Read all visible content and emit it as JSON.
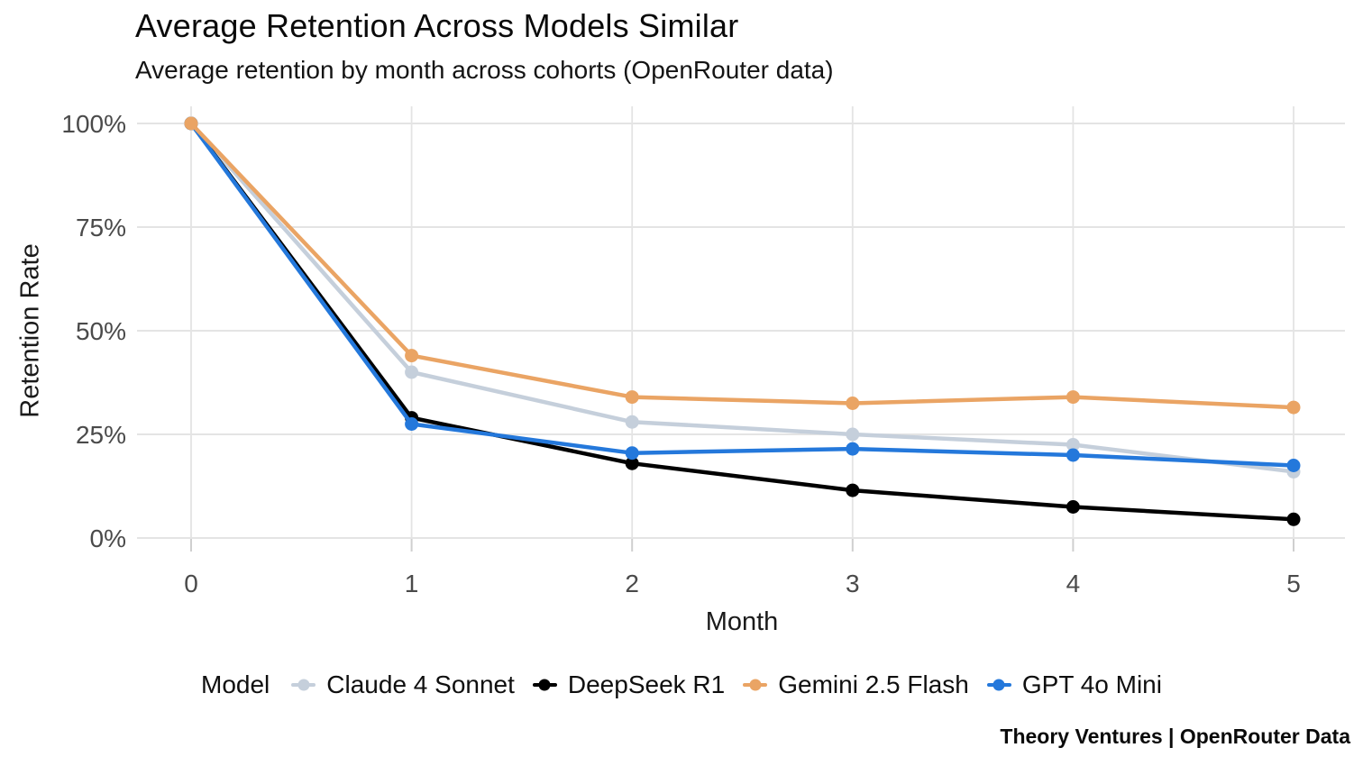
{
  "chart_data": {
    "type": "line",
    "title": "Average Retention Across Models Similar",
    "subtitle": "Average retention by month across cohorts (OpenRouter data)",
    "xlabel": "Month",
    "ylabel": "Retention Rate",
    "x": [
      0,
      1,
      2,
      3,
      4,
      5
    ],
    "x_tick_labels": [
      "0",
      "1",
      "2",
      "3",
      "4",
      "5"
    ],
    "y_ticks": [
      0,
      25,
      50,
      75,
      100
    ],
    "y_tick_labels": [
      "0%",
      "25%",
      "50%",
      "75%",
      "100%"
    ],
    "ylim": [
      0,
      100
    ],
    "xlim": [
      0,
      5
    ],
    "grid": true,
    "legend_position": "bottom-center",
    "legend_title": "Model",
    "series": [
      {
        "name": "Claude 4 Sonnet",
        "color": "#C5CFDB",
        "values": [
          100,
          40,
          28,
          25,
          22.5,
          16
        ]
      },
      {
        "name": "DeepSeek R1",
        "color": "#000000",
        "values": [
          100,
          29,
          18,
          11.5,
          7.5,
          4.5
        ]
      },
      {
        "name": "Gemini 2.5 Flash",
        "color": "#EAA464",
        "values": [
          100,
          44,
          34,
          32.5,
          34,
          31.5
        ]
      },
      {
        "name": "GPT 4o Mini",
        "color": "#2478DB",
        "values": [
          100,
          27.5,
          20.5,
          21.5,
          20,
          17.5
        ]
      }
    ],
    "draw_order": [
      0,
      1,
      3,
      2
    ],
    "colors": {
      "gridline": "#E4E4E4",
      "tick": "#CFCFCF",
      "tick_label": "#4A4A4A"
    }
  },
  "footer": {
    "credit": "Theory Ventures | OpenRouter Data"
  }
}
